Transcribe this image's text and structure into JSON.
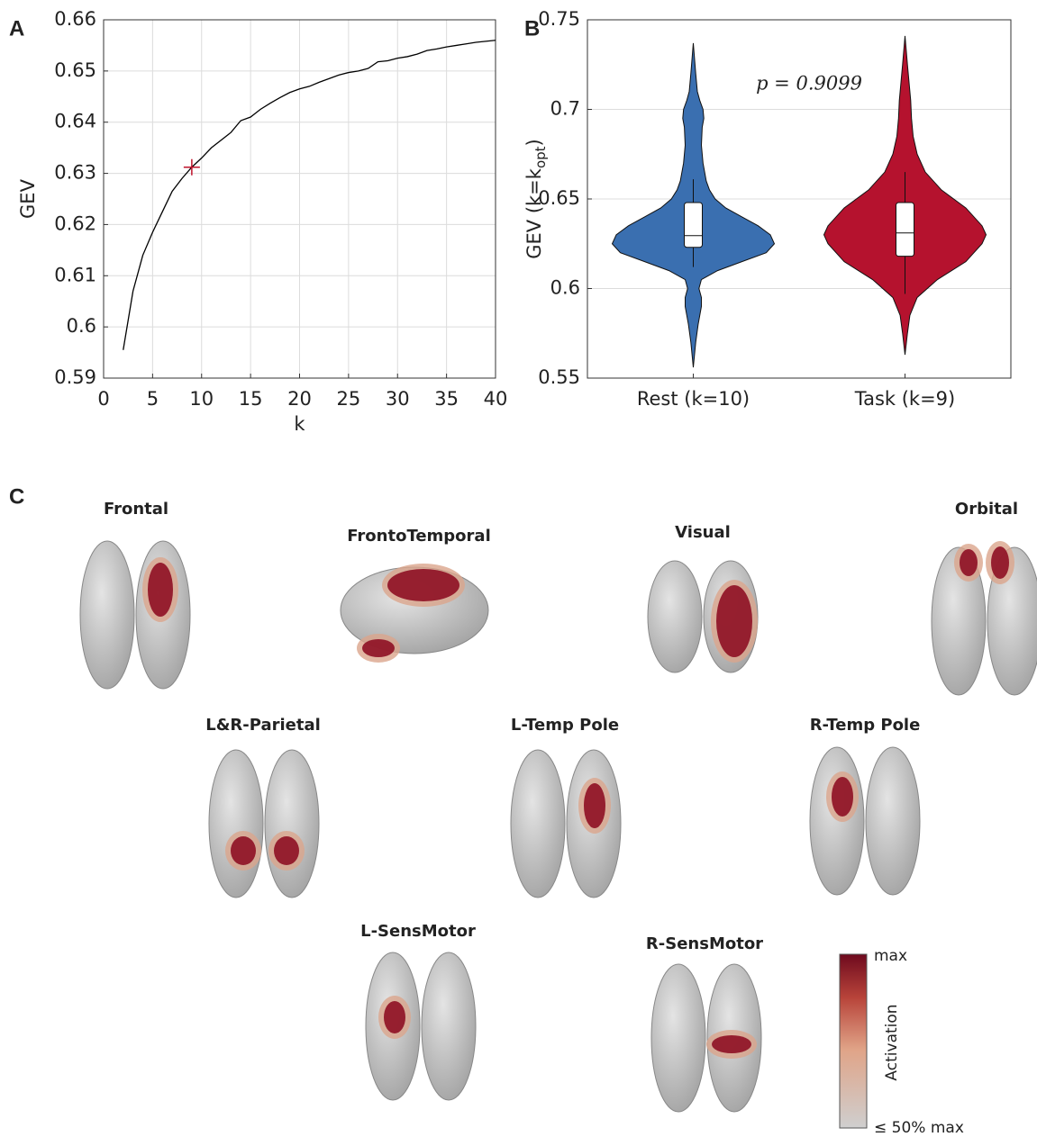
{
  "chart_data": [
    {
      "type": "line",
      "panel": "A",
      "x_label": "k",
      "y_label": "GEV",
      "x": [
        2,
        3,
        4,
        5,
        6,
        7,
        8,
        9,
        10,
        11,
        12,
        13,
        14,
        15,
        16,
        17,
        18,
        19,
        20,
        21,
        22,
        23,
        24,
        25,
        26,
        27,
        28,
        29,
        30,
        31,
        32,
        33,
        34,
        35,
        36,
        37,
        38,
        39,
        40
      ],
      "values": [
        0.5955,
        0.607,
        0.614,
        0.6185,
        0.6225,
        0.6265,
        0.629,
        0.6312,
        0.633,
        0.635,
        0.6365,
        0.638,
        0.6403,
        0.641,
        0.6425,
        0.6437,
        0.6448,
        0.6458,
        0.6465,
        0.647,
        0.6478,
        0.6485,
        0.6492,
        0.6497,
        0.65,
        0.6505,
        0.6518,
        0.652,
        0.6525,
        0.6528,
        0.6533,
        0.654,
        0.6543,
        0.6547,
        0.655,
        0.6553,
        0.6556,
        0.6558,
        0.656
      ],
      "color": "#000000",
      "highlight": {
        "x": 9,
        "y": 0.6312,
        "color": "#c0142c"
      },
      "xlim": [
        0,
        40
      ],
      "xticks": [
        0,
        5,
        10,
        15,
        20,
        25,
        30,
        35,
        40
      ],
      "ylim": [
        0.59,
        0.66
      ],
      "yticks": [
        0.59,
        0.6,
        0.61,
        0.62,
        0.63,
        0.64,
        0.65,
        0.66
      ],
      "grid": true
    },
    {
      "type": "violin",
      "panel": "B",
      "y_label_parts": [
        "GEV (k=k",
        "opt",
        ")"
      ],
      "annotation": "p = 0.9099",
      "categories": [
        "Rest (k=10)",
        "Task (k=9)"
      ],
      "violins": [
        {
          "color": "#3a6fb0",
          "density_y": [
            0.556,
            0.57,
            0.58,
            0.59,
            0.595,
            0.6,
            0.605,
            0.61,
            0.615,
            0.62,
            0.625,
            0.63,
            0.635,
            0.64,
            0.645,
            0.65,
            0.655,
            0.66,
            0.67,
            0.68,
            0.69,
            0.695,
            0.7,
            0.705,
            0.71,
            0.72,
            0.737
          ],
          "density_w": [
            0,
            0.03,
            0.06,
            0.1,
            0.1,
            0.07,
            0.1,
            0.3,
            0.6,
            0.9,
            1.0,
            0.95,
            0.8,
            0.6,
            0.4,
            0.27,
            0.2,
            0.16,
            0.12,
            0.1,
            0.11,
            0.13,
            0.12,
            0.08,
            0.05,
            0.03,
            0
          ],
          "whisker_low": 0.612,
          "q1": 0.623,
          "median": 0.6295,
          "q3": 0.648,
          "whisker_high": 0.661
        },
        {
          "color": "#b5122e",
          "density_y": [
            0.563,
            0.575,
            0.585,
            0.595,
            0.605,
            0.615,
            0.625,
            0.63,
            0.635,
            0.645,
            0.655,
            0.665,
            0.675,
            0.685,
            0.695,
            0.705,
            0.715,
            0.725,
            0.741
          ],
          "density_w": [
            0,
            0.03,
            0.06,
            0.15,
            0.4,
            0.75,
            0.95,
            1.0,
            0.95,
            0.75,
            0.45,
            0.25,
            0.15,
            0.1,
            0.08,
            0.07,
            0.05,
            0.03,
            0
          ],
          "whisker_low": 0.597,
          "q1": 0.618,
          "median": 0.631,
          "q3": 0.648,
          "whisker_high": 0.665
        }
      ],
      "ylim": [
        0.55,
        0.75
      ],
      "yticks": [
        0.55,
        0.6,
        0.65,
        0.7,
        0.75
      ],
      "grid": true
    }
  ],
  "panel_c": {
    "panel": "C",
    "maps": [
      "Frontal",
      "FrontoTemporal",
      "Visual",
      "Orbital",
      "L&R-Parietal",
      "L-Temp Pole",
      "R-Temp Pole",
      "L-SensMotor",
      "R-SensMotor"
    ],
    "colorbar": {
      "max_label": "max",
      "title": "Activation",
      "min_label": "≤ 50% max"
    }
  }
}
